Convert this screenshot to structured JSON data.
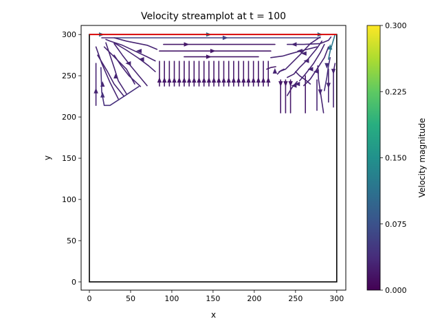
{
  "chart_data": {
    "type": "streamplot",
    "title": "Velocity streamplot at t = 100",
    "xlabel": "x",
    "ylabel": "y",
    "xlim": [
      -10,
      311
    ],
    "ylim": [
      -10,
      311
    ],
    "xticks": [
      0,
      50,
      100,
      150,
      200,
      250,
      300
    ],
    "yticks": [
      0,
      50,
      100,
      150,
      200,
      250,
      300
    ],
    "grid": false,
    "domain_box": {
      "x": [
        0,
        300
      ],
      "y": [
        0,
        300
      ],
      "color": "#000000"
    },
    "lid": {
      "y": 300,
      "x": [
        0,
        300
      ],
      "color": "#e00000"
    },
    "colorbar": {
      "label": "Velocity magnitude",
      "range": [
        0.0,
        0.3
      ],
      "ticks": [
        "0.000",
        "0.075",
        "0.150",
        "0.225",
        "0.300"
      ],
      "colormap": "viridis"
    },
    "streamlines": [
      {
        "points": [
          [
            0,
            300
          ],
          [
            150,
            300
          ],
          [
            300,
            300
          ]
        ],
        "speed": 0.11,
        "arrows": [
          [
            15,
            300,
            "right"
          ],
          [
            145,
            300,
            "right"
          ],
          [
            280,
            300,
            "right"
          ]
        ]
      },
      {
        "points": [
          [
            30,
            296
          ],
          [
            100,
            296
          ],
          [
            200,
            296
          ],
          [
            280,
            296
          ]
        ],
        "speed": 0.06,
        "arrows": [
          [
            165,
            296,
            "right"
          ]
        ]
      },
      {
        "points": [
          [
            90,
            288
          ],
          [
            160,
            288
          ],
          [
            225,
            288
          ]
        ],
        "speed": 0.02,
        "arrows": [
          [
            118,
            288,
            "right"
          ]
        ]
      },
      {
        "points": [
          [
            85,
            280
          ],
          [
            150,
            280
          ],
          [
            220,
            280
          ]
        ],
        "speed": 0.02,
        "arrows": [
          [
            150,
            280,
            "right"
          ]
        ]
      },
      {
        "points": [
          [
            115,
            273
          ],
          [
            150,
            273
          ],
          [
            205,
            273
          ]
        ],
        "speed": 0.02,
        "arrows": [
          [
            145,
            273,
            "right"
          ]
        ]
      },
      {
        "points": [
          [
            240,
            288
          ],
          [
            260,
            288
          ],
          [
            280,
            289
          ],
          [
            290,
            293
          ],
          [
            293,
            297
          ]
        ],
        "speed": 0.03,
        "arrows": [
          [
            248,
            288,
            "left"
          ]
        ]
      },
      {
        "points": [
          [
            220,
            272
          ],
          [
            235,
            274
          ],
          [
            245,
            277
          ],
          [
            260,
            281
          ],
          [
            276,
            285
          ]
        ],
        "speed": 0.03,
        "arrows": [
          [
            255,
            280,
            "left"
          ]
        ]
      },
      {
        "points": [
          [
            82,
            282
          ],
          [
            70,
            287
          ],
          [
            45,
            292
          ],
          [
            30,
            296
          ],
          [
            15,
            296
          ]
        ],
        "speed": 0.03,
        "arrows": []
      },
      {
        "points": [
          [
            80,
            268
          ],
          [
            70,
            273
          ],
          [
            55,
            280
          ],
          [
            40,
            287
          ],
          [
            25,
            292
          ],
          [
            20,
            294
          ]
        ],
        "speed": 0.03,
        "arrows": [
          [
            60,
            280,
            "left"
          ]
        ]
      },
      {
        "points": [
          [
            80,
            255
          ],
          [
            72,
            262
          ],
          [
            60,
            271
          ],
          [
            45,
            281
          ],
          [
            30,
            290
          ]
        ],
        "speed": 0.03,
        "arrows": [
          [
            63,
            270,
            "left"
          ]
        ]
      },
      {
        "points": [
          [
            70,
            238
          ],
          [
            60,
            250
          ],
          [
            50,
            262
          ],
          [
            40,
            275
          ],
          [
            30,
            289
          ]
        ],
        "speed": 0.03,
        "arrows": [
          [
            47,
            265,
            "left"
          ]
        ]
      },
      {
        "points": [
          [
            62,
            237
          ],
          [
            48,
            250
          ],
          [
            38,
            263
          ],
          [
            30,
            275
          ]
        ],
        "speed": 0.03,
        "arrows": []
      },
      {
        "points": [
          [
            55,
            240
          ],
          [
            45,
            258
          ],
          [
            35,
            268
          ],
          [
            25,
            278
          ],
          [
            18,
            285
          ]
        ],
        "speed": 0.03,
        "arrows": []
      },
      {
        "points": [
          [
            45,
            228
          ],
          [
            35,
            244
          ],
          [
            30,
            260
          ],
          [
            25,
            275
          ],
          [
            20,
            290
          ]
        ],
        "speed": 0.03,
        "arrows": [
          [
            32,
            250,
            "up"
          ]
        ]
      },
      {
        "points": [
          [
            35,
            222
          ],
          [
            25,
            242
          ],
          [
            15,
            265
          ],
          [
            8,
            285
          ]
        ],
        "speed": 0.03,
        "arrows": [
          [
            16,
            240,
            "up"
          ]
        ]
      },
      {
        "points": [
          [
            42,
            225
          ],
          [
            30,
            240
          ],
          [
            22,
            255
          ],
          [
            10,
            275
          ]
        ],
        "speed": 0.03,
        "arrows": []
      },
      {
        "points": [
          [
            60,
            237
          ],
          [
            42,
            225
          ],
          [
            25,
            214
          ],
          [
            18,
            214
          ],
          [
            15,
            230
          ],
          [
            14,
            260
          ]
        ],
        "speed": 0.04,
        "arrows": [
          [
            16,
            227,
            "up"
          ]
        ]
      },
      {
        "points": [
          [
            8,
            214
          ],
          [
            8,
            240
          ],
          [
            8,
            265
          ]
        ],
        "speed": 0.03,
        "arrows": [
          [
            8,
            232,
            "up"
          ]
        ]
      },
      {
        "points": [
          [
            280,
            297
          ],
          [
            268,
            289
          ],
          [
            255,
            275
          ],
          [
            245,
            265
          ],
          [
            238,
            258
          ],
          [
            230,
            255
          ]
        ],
        "speed": 0.03,
        "arrows": [
          [
            260,
            277,
            "left"
          ]
        ]
      },
      {
        "points": [
          [
            282,
            292
          ],
          [
            275,
            282
          ],
          [
            265,
            270
          ],
          [
            255,
            260
          ],
          [
            248,
            252
          ],
          [
            240,
            248
          ]
        ],
        "speed": 0.03,
        "arrows": [
          [
            263,
            268,
            "left"
          ]
        ]
      },
      {
        "points": [
          [
            285,
            288
          ],
          [
            280,
            278
          ],
          [
            272,
            265
          ],
          [
            262,
            252
          ],
          [
            255,
            244
          ]
        ],
        "speed": 0.03,
        "arrows": [
          [
            268,
            258,
            "left"
          ]
        ]
      },
      {
        "points": [
          [
            290,
            285
          ],
          [
            285,
            272
          ],
          [
            276,
            258
          ],
          [
            268,
            246
          ],
          [
            260,
            238
          ]
        ],
        "speed": 0.03,
        "arrows": [
          [
            275,
            255,
            "left"
          ]
        ]
      },
      {
        "points": [
          [
            268,
            240
          ],
          [
            262,
            245
          ],
          [
            255,
            250
          ],
          [
            250,
            255
          ]
        ],
        "speed": 0.03,
        "arrows": [
          [
            252,
            240,
            "left"
          ]
        ]
      },
      {
        "points": [
          [
            240,
            226
          ],
          [
            246,
            236
          ],
          [
            252,
            243
          ]
        ],
        "speed": 0.03,
        "arrows": [
          [
            248,
            238,
            "left"
          ]
        ]
      },
      {
        "points": [
          [
            232,
            205
          ],
          [
            232,
            230
          ],
          [
            232,
            245
          ]
        ],
        "speed": 0.02,
        "arrows": [
          [
            232,
            240,
            "down"
          ]
        ]
      },
      {
        "points": [
          [
            238,
            205
          ],
          [
            238,
            230
          ],
          [
            238,
            245
          ]
        ],
        "speed": 0.02,
        "arrows": [
          [
            238,
            240,
            "down"
          ]
        ]
      },
      {
        "points": [
          [
            244,
            205
          ],
          [
            244,
            230
          ],
          [
            244,
            245
          ]
        ],
        "speed": 0.02,
        "arrows": [
          [
            244,
            240,
            "down"
          ]
        ]
      },
      {
        "points": [
          [
            262,
            205
          ],
          [
            262,
            240
          ],
          [
            262,
            250
          ]
        ],
        "speed": 0.02,
        "arrows": []
      },
      {
        "points": [
          [
            290,
            270
          ],
          [
            292,
            280
          ],
          [
            295,
            290
          ],
          [
            298,
            300
          ]
        ],
        "speed": 0.12,
        "arrows": [
          [
            292,
            285,
            "up"
          ]
        ]
      },
      {
        "points": [
          [
            285,
            232
          ],
          [
            288,
            248
          ],
          [
            290,
            262
          ],
          [
            292,
            272
          ]
        ],
        "speed": 0.04,
        "arrows": [
          [
            288,
            262,
            "down"
          ]
        ]
      },
      {
        "points": [
          [
            284,
            205
          ],
          [
            281,
            225
          ],
          [
            278,
            245
          ],
          [
            277,
            262
          ]
        ],
        "speed": 0.03,
        "arrows": [
          [
            280,
            230,
            "down"
          ]
        ]
      },
      {
        "points": [
          [
            290,
            218
          ],
          [
            290,
            235
          ],
          [
            290,
            250
          ],
          [
            290,
            258
          ]
        ],
        "speed": 0.03,
        "arrows": [
          [
            290,
            238,
            "down"
          ]
        ]
      },
      {
        "points": [
          [
            296,
            212
          ],
          [
            296,
            235
          ],
          [
            296,
            255
          ],
          [
            298,
            265
          ]
        ],
        "speed": 0.03,
        "arrows": [
          [
            296,
            255,
            "down"
          ]
        ]
      },
      {
        "points": [
          [
            276,
            208
          ],
          [
            276,
            230
          ],
          [
            276,
            245
          ]
        ],
        "speed": 0.03,
        "arrows": []
      },
      {
        "points": [
          [
            228,
            252
          ],
          [
            232,
            256
          ],
          [
            236,
            258
          ]
        ],
        "speed": 0.03,
        "arrows": [
          [
            225,
            256,
            "up"
          ]
        ]
      },
      {
        "points": [
          [
            215,
            258
          ],
          [
            220,
            260
          ],
          [
            226,
            261
          ]
        ],
        "speed": 0.02,
        "arrows": []
      }
    ],
    "upward_lines": {
      "x": [
        85,
        91,
        97,
        103,
        109,
        115,
        121,
        127,
        133,
        139,
        145,
        151,
        157,
        163,
        169,
        175,
        181,
        187,
        193,
        199,
        205,
        211,
        217
      ],
      "y_from": 237,
      "y_to": 268,
      "arrow_at": 245,
      "direction": "up",
      "speed": 0.02
    }
  }
}
